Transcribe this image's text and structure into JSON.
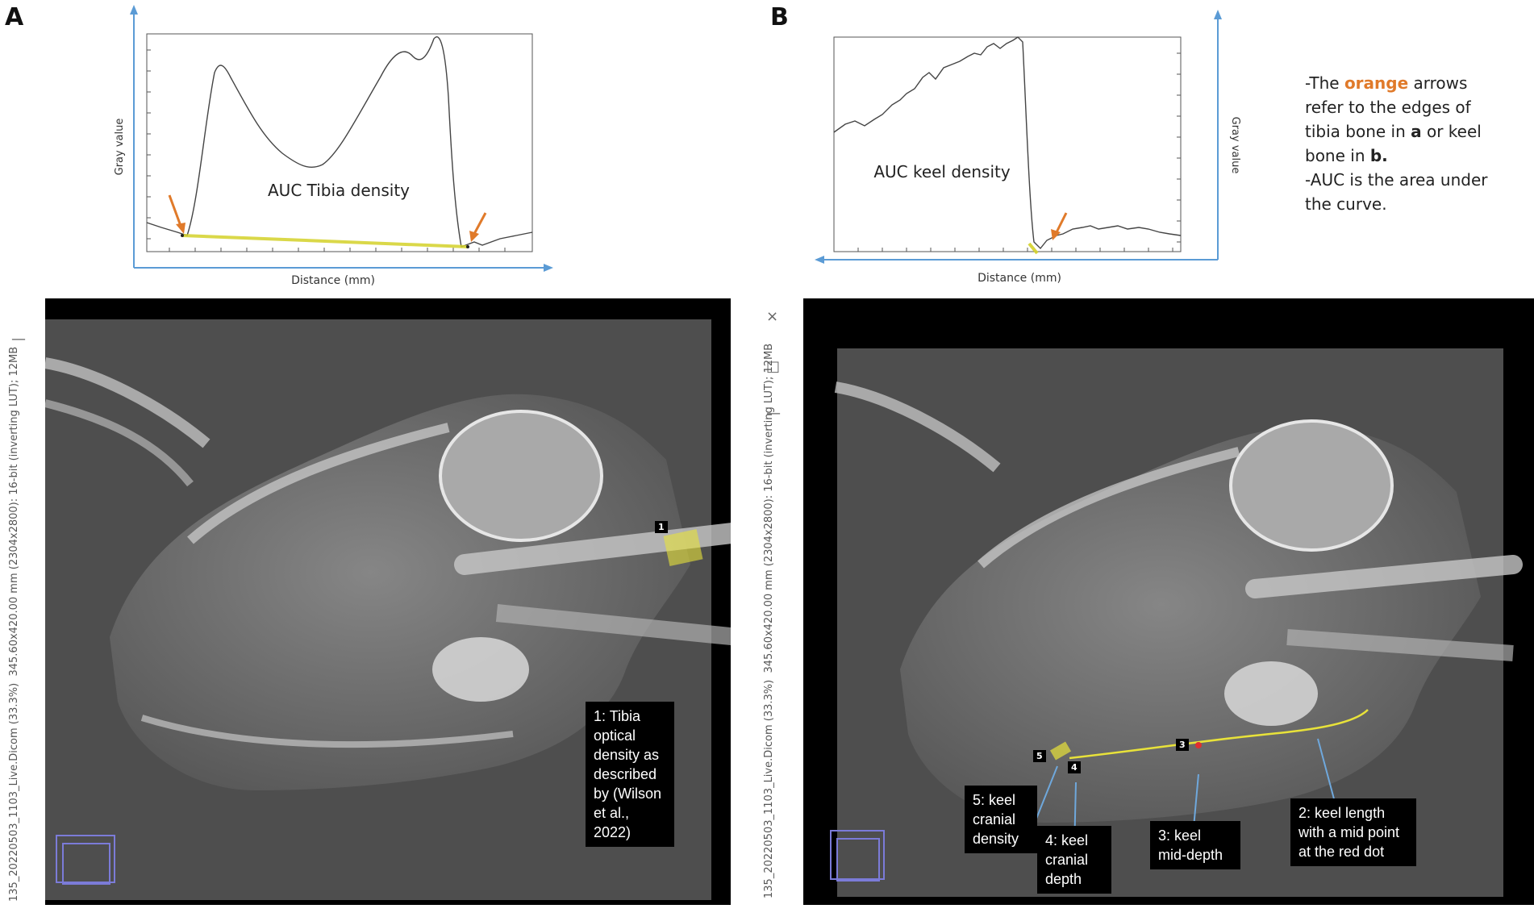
{
  "panels": {
    "a": {
      "letter": "A",
      "plot": {
        "ylabel": "Gray value",
        "xlabel": "Distance (mm)",
        "annotation": "AUC Tibia density"
      },
      "xray": {
        "sidebar_text": "345.60x420.00 mm (2304x2800): 16-bit (inverting LUT); 12MB",
        "sidebar_text_2": "135_20220503_1103_Live.Dicom (33.3%)",
        "roi_tag": "1",
        "callout": [
          "1: Tibia",
          "optical",
          "density as",
          "described",
          "by (Wilson",
          "et al., 2022)"
        ]
      }
    },
    "b": {
      "letter": "B",
      "plot": {
        "ylabel": "Gray value",
        "xlabel": "Distance (mm)",
        "annotation": "AUC keel density"
      },
      "xray": {
        "sidebar_text": "345.60x420.00 mm (2304x2800): 16-bit (inverting LUT); 12MB",
        "sidebar_text_2": "135_20220503_1103_Live.Dicom (33.3%)",
        "window_controls": [
          "×",
          "□",
          "—"
        ],
        "tags": [
          "5",
          "4",
          "3"
        ],
        "callouts": {
          "c5": [
            "5: keel",
            "cranial",
            "density"
          ],
          "c4": [
            "4: keel",
            "cranial",
            "depth"
          ],
          "c3": [
            "3: keel",
            "mid-depth"
          ],
          "c2": [
            "2: keel length",
            "with a mid point",
            "at the red dot"
          ]
        }
      }
    }
  },
  "note": {
    "line1_pre": "-The ",
    "line1_orange": "orange",
    "line1_post": " arrows",
    "line2": "refer to the edges of",
    "line3_pre": "tibia  bone in ",
    "line3_bold": "a",
    "line3_post": " or keel",
    "line4_pre": "bone in ",
    "line4_bold": "b.",
    "line5": "-AUC is the area under",
    "line6": "the curve."
  },
  "colors": {
    "orange_arrow": "#e07a2a",
    "axis_arrow": "#5b9bd5",
    "roi_yellow": "#e8e23a",
    "callout_arrow": "#6fa8dc"
  }
}
